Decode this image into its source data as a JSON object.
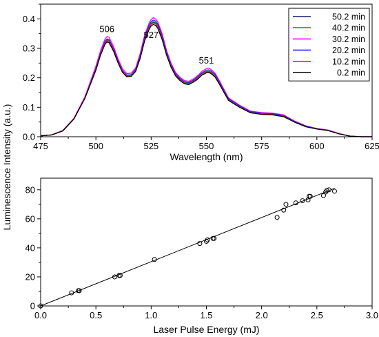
{
  "chart_data": [
    {
      "type": "line",
      "xlabel": "Wavelength (nm)",
      "ylabel": "",
      "xlim": [
        475,
        625
      ],
      "ylim": [
        0,
        0.45
      ],
      "xticks": [
        475,
        500,
        525,
        550,
        575,
        600,
        625
      ],
      "xtick_labels": [
        "475",
        "500",
        "525",
        "550",
        "575",
        "600",
        "625"
      ],
      "yticks": [
        0,
        0.1,
        0.2,
        0.3,
        0.4
      ],
      "ytick_labels": [
        "0.0",
        "0.1",
        "0.2",
        "0.3",
        "0.4"
      ],
      "grid": false,
      "legend_position": "top-right",
      "annotations": [
        {
          "text": "506",
          "x": 505,
          "y": 0.355
        },
        {
          "text": "527",
          "x": 525,
          "y": 0.335
        },
        {
          "text": "551",
          "x": 550,
          "y": 0.248
        }
      ],
      "x": [
        475,
        480,
        485,
        490,
        495,
        500,
        502,
        504,
        505,
        506,
        508,
        510,
        512,
        514,
        516,
        518,
        520,
        522,
        524,
        525,
        526,
        527,
        528,
        530,
        532,
        534,
        536,
        538,
        540,
        542,
        544,
        546,
        548,
        550,
        551,
        552,
        554,
        556,
        558,
        560,
        565,
        570,
        575,
        580,
        585,
        590,
        595,
        600,
        605,
        610,
        615,
        620,
        625
      ],
      "series": [
        {
          "name": "50.2 min",
          "color": "#191970",
          "values": [
            0.003,
            0.006,
            0.02,
            0.06,
            0.13,
            0.23,
            0.28,
            0.318,
            0.328,
            0.325,
            0.295,
            0.255,
            0.222,
            0.206,
            0.208,
            0.225,
            0.27,
            0.33,
            0.37,
            0.383,
            0.388,
            0.385,
            0.375,
            0.335,
            0.28,
            0.24,
            0.21,
            0.194,
            0.183,
            0.18,
            0.188,
            0.198,
            0.212,
            0.22,
            0.221,
            0.218,
            0.205,
            0.18,
            0.152,
            0.125,
            0.102,
            0.083,
            0.078,
            0.076,
            0.07,
            0.05,
            0.035,
            0.027,
            0.022,
            0.01,
            0.002,
            0.0,
            0.0
          ]
        },
        {
          "name": "40.2 min",
          "color": "#228b22",
          "values": [
            0.003,
            0.006,
            0.02,
            0.06,
            0.13,
            0.23,
            0.28,
            0.32,
            0.33,
            0.327,
            0.297,
            0.257,
            0.224,
            0.208,
            0.21,
            0.227,
            0.272,
            0.332,
            0.372,
            0.386,
            0.391,
            0.388,
            0.378,
            0.338,
            0.283,
            0.242,
            0.212,
            0.196,
            0.185,
            0.182,
            0.19,
            0.2,
            0.214,
            0.222,
            0.223,
            0.22,
            0.207,
            0.182,
            0.154,
            0.127,
            0.103,
            0.084,
            0.079,
            0.077,
            0.071,
            0.051,
            0.035,
            0.027,
            0.022,
            0.01,
            0.002,
            0.0,
            0.0
          ]
        },
        {
          "name": "30.2 min",
          "color": "#ff00ff",
          "values": [
            0.003,
            0.006,
            0.021,
            0.062,
            0.135,
            0.24,
            0.29,
            0.33,
            0.34,
            0.337,
            0.306,
            0.265,
            0.231,
            0.214,
            0.216,
            0.234,
            0.281,
            0.343,
            0.385,
            0.398,
            0.404,
            0.4,
            0.39,
            0.349,
            0.292,
            0.25,
            0.219,
            0.202,
            0.191,
            0.188,
            0.196,
            0.207,
            0.222,
            0.231,
            0.233,
            0.229,
            0.215,
            0.189,
            0.16,
            0.132,
            0.107,
            0.087,
            0.082,
            0.08,
            0.074,
            0.053,
            0.037,
            0.028,
            0.023,
            0.011,
            0.002,
            0.0,
            0.0
          ]
        },
        {
          "name": "20.2 min",
          "color": "#2222ee",
          "values": [
            0.003,
            0.006,
            0.02,
            0.06,
            0.13,
            0.232,
            0.282,
            0.322,
            0.332,
            0.329,
            0.299,
            0.258,
            0.225,
            0.209,
            0.211,
            0.229,
            0.275,
            0.336,
            0.377,
            0.391,
            0.396,
            0.393,
            0.383,
            0.342,
            0.286,
            0.245,
            0.214,
            0.198,
            0.187,
            0.184,
            0.192,
            0.203,
            0.217,
            0.226,
            0.227,
            0.224,
            0.211,
            0.185,
            0.156,
            0.129,
            0.105,
            0.085,
            0.08,
            0.078,
            0.072,
            0.052,
            0.036,
            0.028,
            0.022,
            0.01,
            0.002,
            0.0,
            0.0
          ]
        },
        {
          "name": "10.2 min",
          "color": "#ee2222",
          "values": [
            0.003,
            0.006,
            0.02,
            0.06,
            0.13,
            0.228,
            0.278,
            0.316,
            0.326,
            0.323,
            0.293,
            0.253,
            0.221,
            0.205,
            0.207,
            0.224,
            0.268,
            0.328,
            0.368,
            0.381,
            0.386,
            0.383,
            0.373,
            0.333,
            0.279,
            0.239,
            0.209,
            0.193,
            0.182,
            0.179,
            0.187,
            0.197,
            0.211,
            0.219,
            0.22,
            0.217,
            0.204,
            0.179,
            0.151,
            0.124,
            0.101,
            0.082,
            0.077,
            0.075,
            0.069,
            0.05,
            0.034,
            0.027,
            0.021,
            0.01,
            0.002,
            0.0,
            0.0
          ]
        },
        {
          "name": "0.2 min",
          "color": "#000000",
          "values": [
            0.003,
            0.006,
            0.02,
            0.06,
            0.13,
            0.226,
            0.275,
            0.312,
            0.322,
            0.319,
            0.29,
            0.251,
            0.219,
            0.203,
            0.205,
            0.222,
            0.265,
            0.324,
            0.363,
            0.376,
            0.381,
            0.378,
            0.368,
            0.329,
            0.276,
            0.236,
            0.207,
            0.191,
            0.18,
            0.177,
            0.185,
            0.195,
            0.209,
            0.217,
            0.218,
            0.215,
            0.202,
            0.177,
            0.15,
            0.123,
            0.1,
            0.081,
            0.076,
            0.074,
            0.068,
            0.049,
            0.034,
            0.026,
            0.021,
            0.01,
            0.002,
            0.0,
            0.0
          ]
        }
      ]
    },
    {
      "type": "scatter",
      "xlabel": "Laser Pulse Energy (mJ)",
      "ylabel": "Luminescence Intensity (a.u.)",
      "xlim": [
        0,
        3.0
      ],
      "ylim": [
        0,
        88
      ],
      "xticks": [
        0,
        0.5,
        1.0,
        1.5,
        2.0,
        2.5,
        3.0
      ],
      "xtick_labels": [
        "0.0",
        "0.5",
        "1.0",
        "1.5",
        "2.0",
        "2.5",
        "3.0"
      ],
      "yticks": [
        0,
        20,
        40,
        60,
        80
      ],
      "ytick_labels": [
        "0",
        "20",
        "40",
        "60",
        "80"
      ],
      "grid": false,
      "points": [
        {
          "x": 0.0,
          "y": 0
        },
        {
          "x": 0.28,
          "y": 9
        },
        {
          "x": 0.34,
          "y": 10.5
        },
        {
          "x": 0.35,
          "y": 10.5
        },
        {
          "x": 0.67,
          "y": 20
        },
        {
          "x": 0.71,
          "y": 21
        },
        {
          "x": 0.72,
          "y": 21
        },
        {
          "x": 1.03,
          "y": 32
        },
        {
          "x": 1.44,
          "y": 43
        },
        {
          "x": 1.5,
          "y": 44.5
        },
        {
          "x": 1.51,
          "y": 45.5
        },
        {
          "x": 1.56,
          "y": 46.5
        },
        {
          "x": 1.57,
          "y": 46.5
        },
        {
          "x": 2.14,
          "y": 61
        },
        {
          "x": 2.2,
          "y": 66
        },
        {
          "x": 2.22,
          "y": 70
        },
        {
          "x": 2.31,
          "y": 71
        },
        {
          "x": 2.37,
          "y": 72.5
        },
        {
          "x": 2.42,
          "y": 73
        },
        {
          "x": 2.43,
          "y": 75.5
        },
        {
          "x": 2.44,
          "y": 75.5
        },
        {
          "x": 2.56,
          "y": 76
        },
        {
          "x": 2.58,
          "y": 78.5
        },
        {
          "x": 2.59,
          "y": 79.5
        },
        {
          "x": 2.61,
          "y": 80
        },
        {
          "x": 2.66,
          "y": 79
        }
      ],
      "fit_line": {
        "x": [
          0,
          2.66
        ],
        "y": [
          0,
          81
        ]
      }
    }
  ]
}
